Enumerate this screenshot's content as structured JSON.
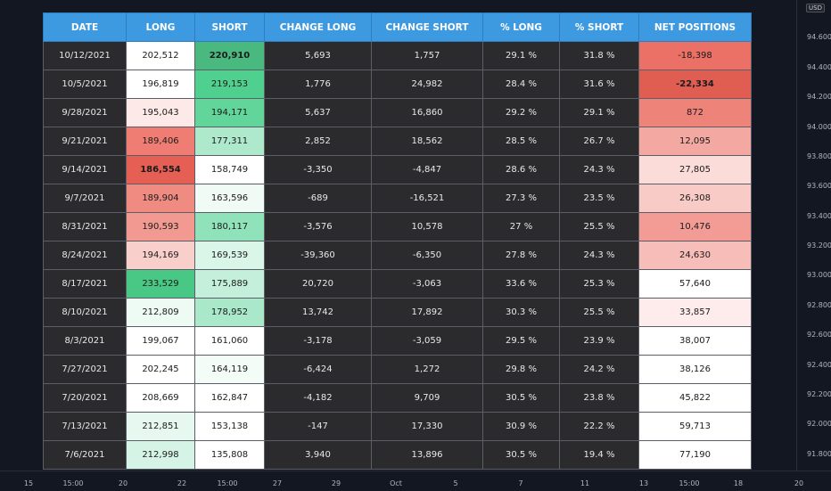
{
  "price_scale": {
    "currency": "USD",
    "ticks": [
      "94.600",
      "94.400",
      "94.200",
      "94.000",
      "93.800",
      "93.600",
      "93.400",
      "93.200",
      "93.000",
      "92.800",
      "92.600",
      "92.400",
      "92.200",
      "92.000",
      "91.800"
    ]
  },
  "time_axis": {
    "ticks": [
      "15",
      "15:00",
      "20",
      "22",
      "15:00",
      "27",
      "29",
      "Oct",
      "5",
      "7",
      "11",
      "13",
      "15:00",
      "18",
      "20"
    ]
  },
  "table": {
    "headers": [
      "DATE",
      "LONG",
      "SHORT",
      "CHANGE LONG",
      "CHANGE SHORT",
      "% LONG",
      "% SHORT",
      "NET POSITIONS"
    ],
    "rows": [
      {
        "date": "10/12/2021",
        "long": "202,512",
        "short": "220,910",
        "change_long": "5,693",
        "change_short": "1,757",
        "pct_long": "29.1 %",
        "pct_short": "31.8 %",
        "net": "-18,398",
        "long_color": "#ffffff",
        "short_color": "#49b97f",
        "net_color": "#eb7066",
        "short_bold": true
      },
      {
        "date": "10/5/2021",
        "long": "196,819",
        "short": "219,153",
        "change_long": "1,776",
        "change_short": "24,982",
        "pct_long": "28.4 %",
        "pct_short": "31.6 %",
        "net": "-22,334",
        "long_color": "#ffffff",
        "short_color": "#4fd08f",
        "net_color": "#e05d52",
        "net_bold": true
      },
      {
        "date": "9/28/2021",
        "long": "195,043",
        "short": "194,171",
        "change_long": "5,637",
        "change_short": "16,860",
        "pct_long": "29.2 %",
        "pct_short": "29.1 %",
        "net": "872",
        "long_color": "#fde9e8",
        "short_color": "#62d59b",
        "net_color": "#ee837a"
      },
      {
        "date": "9/21/2021",
        "long": "189,406",
        "short": "177,311",
        "change_long": "2,852",
        "change_short": "18,562",
        "pct_long": "28.5 %",
        "pct_short": "26.7 %",
        "net": "12,095",
        "long_color": "#ef7d73",
        "short_color": "#aee9cc",
        "net_color": "#f3a8a1"
      },
      {
        "date": "9/14/2021",
        "long": "186,554",
        "short": "158,749",
        "change_long": "-3,350",
        "change_short": "-4,847",
        "pct_long": "28.6 %",
        "pct_short": "24.3 %",
        "net": "27,805",
        "long_color": "#e65f54",
        "short_color": "#ffffff",
        "net_color": "#fbdcd9",
        "long_bold": true
      },
      {
        "date": "9/7/2021",
        "long": "189,904",
        "short": "163,596",
        "change_long": "-689",
        "change_short": "-16,521",
        "pct_long": "27.3 %",
        "pct_short": "23.5 %",
        "net": "26,308",
        "long_color": "#f08b82",
        "short_color": "#f0fbf5",
        "net_color": "#f9cbc7"
      },
      {
        "date": "8/31/2021",
        "long": "190,593",
        "short": "180,117",
        "change_long": "-3,576",
        "change_short": "10,578",
        "pct_long": "27 %",
        "pct_short": "25.5 %",
        "net": "10,476",
        "long_color": "#f29a92",
        "short_color": "#8fe2ba",
        "net_color": "#f29c95"
      },
      {
        "date": "8/24/2021",
        "long": "194,169",
        "short": "169,539",
        "change_long": "-39,360",
        "change_short": "-6,350",
        "pct_long": "27.8 %",
        "pct_short": "24.3 %",
        "net": "24,630",
        "long_color": "#f9cfcb",
        "short_color": "#daf6e8",
        "net_color": "#f7bdb8"
      },
      {
        "date": "8/17/2021",
        "long": "233,529",
        "short": "175,889",
        "change_long": "20,720",
        "change_short": "-3,063",
        "pct_long": "33.6 %",
        "pct_short": "25.3 %",
        "net": "57,640",
        "long_color": "#49c784",
        "short_color": "#c4efdb",
        "net_color": "#ffffff"
      },
      {
        "date": "8/10/2021",
        "long": "212,809",
        "short": "178,952",
        "change_long": "13,742",
        "change_short": "17,892",
        "pct_long": "30.3 %",
        "pct_short": "25.5 %",
        "net": "33,857",
        "long_color": "#eefaf4",
        "short_color": "#a9e8c9",
        "net_color": "#fdeceb"
      },
      {
        "date": "8/3/2021",
        "long": "199,067",
        "short": "161,060",
        "change_long": "-3,178",
        "change_short": "-3,059",
        "pct_long": "29.5 %",
        "pct_short": "23.9 %",
        "net": "38,007",
        "long_color": "#ffffff",
        "short_color": "#ffffff",
        "net_color": "#ffffff"
      },
      {
        "date": "7/27/2021",
        "long": "202,245",
        "short": "164,119",
        "change_long": "-6,424",
        "change_short": "1,272",
        "pct_long": "29.8 %",
        "pct_short": "24.2 %",
        "net": "38,126",
        "long_color": "#ffffff",
        "short_color": "#f3fcf7",
        "net_color": "#ffffff"
      },
      {
        "date": "7/20/2021",
        "long": "208,669",
        "short": "162,847",
        "change_long": "-4,182",
        "change_short": "9,709",
        "pct_long": "30.5 %",
        "pct_short": "23.8 %",
        "net": "45,822",
        "long_color": "#ffffff",
        "short_color": "#ffffff",
        "net_color": "#ffffff"
      },
      {
        "date": "7/13/2021",
        "long": "212,851",
        "short": "153,138",
        "change_long": "-147",
        "change_short": "17,330",
        "pct_long": "30.9 %",
        "pct_short": "22.2 %",
        "net": "59,713",
        "long_color": "#e6f8ef",
        "short_color": "#ffffff",
        "net_color": "#ffffff"
      },
      {
        "date": "7/6/2021",
        "long": "212,998",
        "short": "135,808",
        "change_long": "3,940",
        "change_short": "13,896",
        "pct_long": "30.5 %",
        "pct_short": "19.4 %",
        "net": "77,190",
        "long_color": "#d6f4e5",
        "short_color": "#ffffff",
        "net_color": "#ffffff"
      }
    ]
  }
}
